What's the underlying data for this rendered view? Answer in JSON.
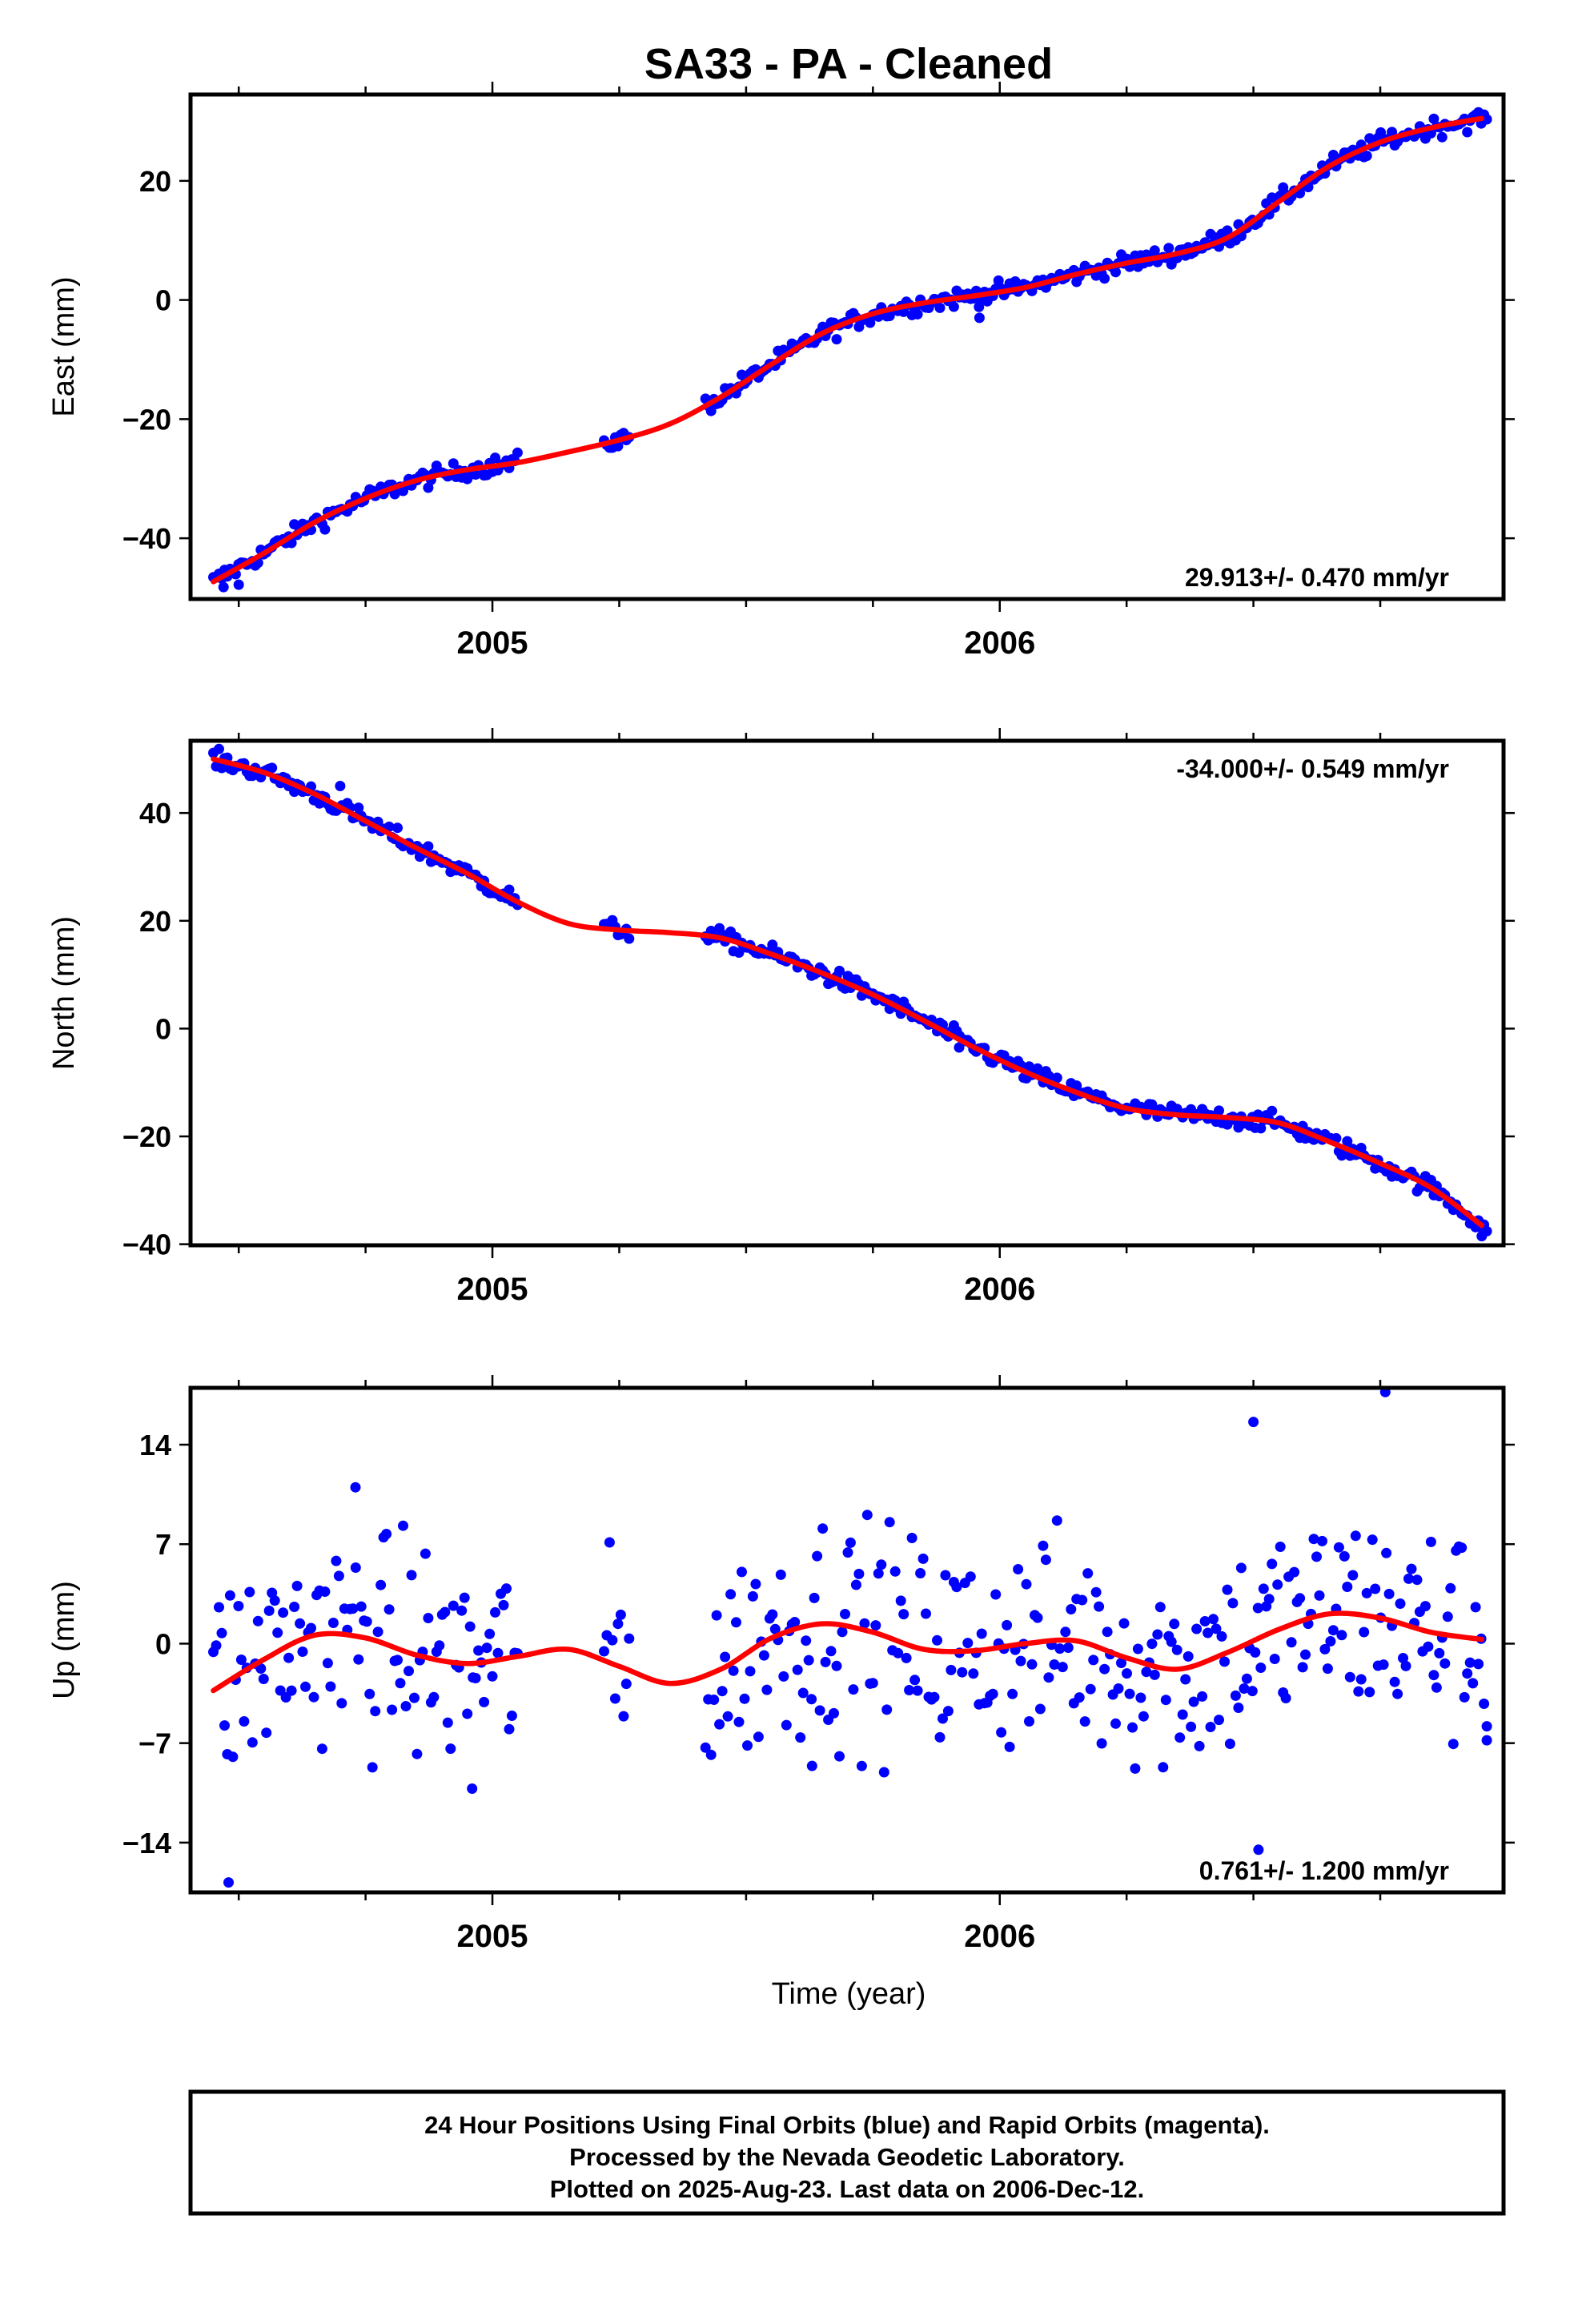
{
  "chart_data": {
    "title": "SA33  - PA - Cleaned",
    "type": "scatter",
    "xlabel": "Time (year)",
    "xlim": [
      2004.405,
      2006.993
    ],
    "x_ticks": [
      2005,
      2006
    ],
    "x_tick_labels": [
      "2005",
      "2006"
    ],
    "colors": {
      "points": "#0000ff",
      "fit": "#ff0000",
      "axes": "#000000"
    },
    "panels": [
      {
        "id": "east",
        "ylabel": "East (mm)",
        "ylim": [
          -50.2,
          34.5
        ],
        "y_ticks": [
          -40,
          -20,
          0,
          20
        ],
        "y_tick_labels": [
          "−40",
          "−20",
          "0",
          "20"
        ],
        "rate_label": "29.913+/- 0.470 mm/yr",
        "rate_position": "bottom-right",
        "fit": {
          "x": [
            2004.45,
            2004.55,
            2004.65,
            2004.75,
            2004.85,
            2004.95,
            2005.05,
            2005.15,
            2005.25,
            2005.35,
            2005.45,
            2005.55,
            2005.65,
            2005.75,
            2005.85,
            2005.95,
            2006.05,
            2006.15,
            2006.25,
            2006.35,
            2006.45,
            2006.55,
            2006.65,
            2006.75,
            2006.85,
            2006.95
          ],
          "y": [
            -47.3,
            -42.5,
            -37.3,
            -33.3,
            -30.3,
            -28.5,
            -27.3,
            -25.5,
            -23.5,
            -20.8,
            -16.3,
            -10.8,
            -5.6,
            -2.3,
            -0.5,
            0.7,
            2.1,
            4.3,
            6.2,
            7.8,
            10.5,
            16.5,
            22.5,
            26.5,
            28.9,
            30.5
          ]
        },
        "scatter": {
          "segments": [
            [
              2004.45,
              2005.05
            ],
            [
              2005.22,
              2005.27
            ],
            [
              2005.42,
              2006.96
            ]
          ],
          "jitter": 1.1,
          "extra_points": [
            {
              "x": 2004.47,
              "y": -48.2
            },
            {
              "x": 2004.5,
              "y": -47.8
            },
            {
              "x": 2005.96,
              "y": -3.0
            }
          ]
        }
      },
      {
        "id": "north",
        "ylabel": "North (mm)",
        "ylim": [
          -40.2,
          53.4
        ],
        "y_ticks": [
          -40,
          -20,
          0,
          20,
          40
        ],
        "y_tick_labels": [
          "−40",
          "−20",
          "0",
          "20",
          "40"
        ],
        "rate_label": "-34.000+/- 0.549 mm/yr",
        "rate_position": "top-right",
        "fit": {
          "x": [
            2004.45,
            2004.55,
            2004.65,
            2004.75,
            2004.85,
            2004.95,
            2005.05,
            2005.15,
            2005.25,
            2005.35,
            2005.45,
            2005.55,
            2005.65,
            2005.75,
            2005.85,
            2005.95,
            2006.05,
            2006.15,
            2006.25,
            2006.35,
            2006.45,
            2006.55,
            2006.65,
            2006.75,
            2006.85,
            2006.95
          ],
          "y": [
            50.0,
            47.5,
            43.5,
            38.5,
            33.5,
            28.8,
            23.5,
            19.5,
            18.3,
            17.8,
            16.8,
            13.8,
            10.3,
            6.3,
            1.5,
            -3.5,
            -8.0,
            -11.8,
            -14.8,
            -16.0,
            -16.5,
            -17.5,
            -21.0,
            -25.0,
            -29.5,
            -36.5
          ]
        },
        "scatter": {
          "segments": [
            [
              2004.45,
              2005.05
            ],
            [
              2005.22,
              2005.27
            ],
            [
              2005.42,
              2006.96
            ]
          ],
          "jitter": 1.2,
          "extra_points": [
            {
              "x": 2004.7,
              "y": 45.0
            },
            {
              "x": 2005.92,
              "y": -3.5
            },
            {
              "x": 2006.95,
              "y": -38.5
            }
          ]
        }
      },
      {
        "id": "up",
        "ylabel": "Up (mm)",
        "ylim": [
          -17.5,
          18.0
        ],
        "y_ticks": [
          -14,
          -7,
          0,
          7,
          14
        ],
        "y_tick_labels": [
          "−14",
          "−7",
          "0",
          "7",
          "14"
        ],
        "rate_label": "0.761+/- 1.200 mm/yr",
        "rate_position": "bottom-right",
        "fit": {
          "x": [
            2004.45,
            2004.55,
            2004.65,
            2004.75,
            2004.85,
            2004.95,
            2005.05,
            2005.15,
            2005.25,
            2005.35,
            2005.45,
            2005.55,
            2005.65,
            2005.75,
            2005.85,
            2005.95,
            2006.05,
            2006.15,
            2006.25,
            2006.35,
            2006.45,
            2006.55,
            2006.65,
            2006.75,
            2006.85,
            2006.95
          ],
          "y": [
            -3.3,
            -1.1,
            0.6,
            0.4,
            -0.8,
            -1.4,
            -0.9,
            -0.4,
            -1.6,
            -2.8,
            -1.8,
            0.4,
            1.4,
            0.8,
            -0.4,
            -0.5,
            0.0,
            0.2,
            -1.0,
            -1.8,
            -0.6,
            1.0,
            2.1,
            1.8,
            0.8,
            0.3
          ]
        },
        "scatter": {
          "segments": [
            [
              2004.45,
              2005.05
            ],
            [
              2005.22,
              2005.27
            ],
            [
              2005.42,
              2006.96
            ]
          ],
          "jitter": 5.5,
          "extra_points": [
            {
              "x": 2004.48,
              "y": -16.8
            },
            {
              "x": 2004.73,
              "y": 11.0
            },
            {
              "x": 2004.96,
              "y": -10.2
            },
            {
              "x": 2005.63,
              "y": -8.6
            },
            {
              "x": 2006.5,
              "y": 15.6
            },
            {
              "x": 2006.51,
              "y": -14.5
            },
            {
              "x": 2006.76,
              "y": 17.7
            },
            {
              "x": 2006.96,
              "y": -6.8
            }
          ]
        }
      }
    ]
  },
  "footer": {
    "line1": "24 Hour Positions Using Final Orbits (blue) and Rapid Orbits (magenta).",
    "line2": "Processed by the Nevada Geodetic Laboratory.",
    "line3": "Plotted on 2025-Aug-23. Last data on 2006-Dec-12."
  }
}
